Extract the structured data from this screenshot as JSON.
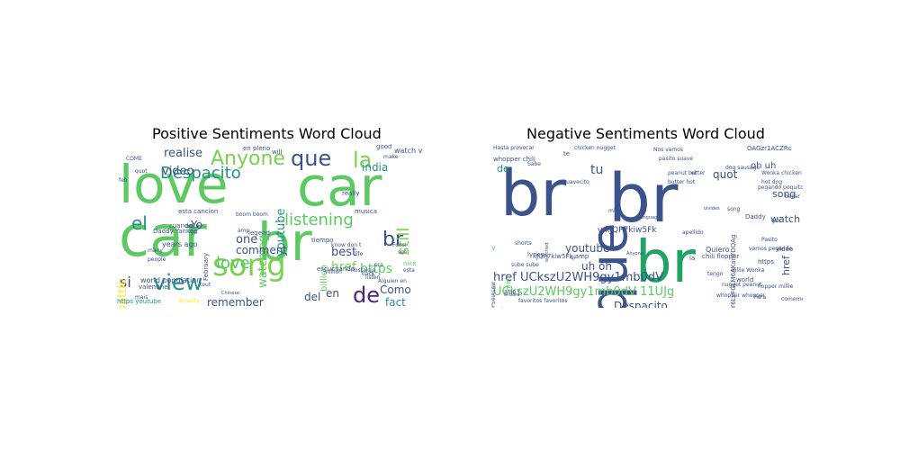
{
  "positive": {
    "title": "Positive Sentiments Word Cloud",
    "words": [
      {
        "t": "love",
        "s": 58,
        "c": "#5ec962",
        "x": 0,
        "y": 0
      },
      {
        "t": "car",
        "s": 62,
        "c": "#5ec962",
        "x": 0,
        "y": 0
      },
      {
        "t": "car",
        "s": 60,
        "c": "#5ec962",
        "x": 0,
        "y": 0
      },
      {
        "t": "br",
        "s": 58,
        "c": "#5ec962",
        "x": 0,
        "y": 0
      },
      {
        "t": "song",
        "s": 34,
        "c": "#7ad151",
        "x": 0,
        "y": 0
      },
      {
        "t": "Anyone",
        "s": 22,
        "c": "#7ad151",
        "x": 0,
        "y": 0
      },
      {
        "t": "que",
        "s": 24,
        "c": "#3b528b",
        "x": 0,
        "y": 0
      },
      {
        "t": "la",
        "s": 24,
        "c": "#7ad151",
        "x": 0,
        "y": 0
      },
      {
        "t": "listening",
        "s": 18,
        "c": "#5ec962",
        "x": 0,
        "y": 0
      },
      {
        "t": "Despacito",
        "s": 18,
        "c": "#21918c",
        "x": 0,
        "y": 0
      },
      {
        "t": "el",
        "s": 20,
        "c": "#21918c",
        "x": 0,
        "y": 0
      },
      {
        "t": "view",
        "s": 24,
        "c": "#21918c",
        "x": 0,
        "y": 0
      },
      {
        "t": "si",
        "s": 16,
        "c": "#3b528b",
        "x": 0,
        "y": 0
      },
      {
        "t": "love",
        "s": 18,
        "c": "#5ec962",
        "x": 0,
        "y": 0
      },
      {
        "t": "de",
        "s": 24,
        "c": "#482878",
        "x": 0,
        "y": 0
      },
      {
        "t": "br",
        "s": 22,
        "c": "#3b528b",
        "x": 0,
        "y": 0
      },
      {
        "t": "still",
        "s": 18,
        "c": "#7ad151",
        "x": 0,
        "y": 0
      },
      {
        "t": "href",
        "s": 14,
        "c": "#7ad151",
        "x": 0,
        "y": 0
      },
      {
        "t": "https",
        "s": 14,
        "c": "#5ec962",
        "x": 0,
        "y": 0
      },
      {
        "t": "realise",
        "s": 13,
        "c": "#3b528b",
        "x": 0,
        "y": 0
      },
      {
        "t": "video",
        "s": 13,
        "c": "#3b528b",
        "x": 0,
        "y": 0
      },
      {
        "t": "india",
        "s": 12,
        "c": "#21918c",
        "x": 0,
        "y": 0
      },
      {
        "t": "youtube",
        "s": 13,
        "c": "#21918c",
        "x": 0,
        "y": 0
      },
      {
        "t": "watching",
        "s": 13,
        "c": "#5ec962",
        "x": 0,
        "y": 0
      },
      {
        "t": "battle",
        "s": 13,
        "c": "#fde725",
        "x": 0,
        "y": 0
      },
      {
        "t": "comment",
        "s": 12,
        "c": "#3b528b",
        "x": 0,
        "y": 0
      },
      {
        "t": "one",
        "s": 13,
        "c": "#3b528b",
        "x": 0,
        "y": 0
      },
      {
        "t": "best",
        "s": 13,
        "c": "#3b528b",
        "x": 0,
        "y": 0
      },
      {
        "t": "Como",
        "s": 12,
        "c": "#3b528b",
        "x": 0,
        "y": 0
      },
      {
        "t": "fact",
        "s": 12,
        "c": "#21918c",
        "x": 0,
        "y": 0
      },
      {
        "t": "remember",
        "s": 12,
        "c": "#3b528b",
        "x": 0,
        "y": 0
      },
      {
        "t": "del",
        "s": 12,
        "c": "#3b528b",
        "x": 0,
        "y": 0
      },
      {
        "t": "en",
        "s": 12,
        "c": "#3b528b",
        "x": 0,
        "y": 0
      },
      {
        "t": "Yo",
        "s": 12,
        "c": "#3b528b",
        "x": 0,
        "y": 0
      },
      {
        "t": "billion",
        "s": 10,
        "c": "#5ec962",
        "x": 0,
        "y": 0
      },
      {
        "t": "years ago",
        "s": 8,
        "c": "#3b528b",
        "x": 0,
        "y": 0
      },
      {
        "t": "world population",
        "s": 8,
        "c": "#3b528b",
        "x": 0,
        "y": 0
      },
      {
        "t": "valentine",
        "s": 7,
        "c": "#3b528b",
        "x": 0,
        "y": 0
      },
      {
        "t": "https youtube",
        "s": 7,
        "c": "#21918c",
        "x": 0,
        "y": 0
      },
      {
        "t": "dynasty",
        "s": 6,
        "c": "#fde725",
        "x": 0,
        "y": 0
      },
      {
        "t": "watch v",
        "s": 8,
        "c": "#3b528b",
        "x": 0,
        "y": 0
      },
      {
        "t": "good",
        "s": 7,
        "c": "#3b528b",
        "x": 0,
        "y": 0
      },
      {
        "t": "en pleno",
        "s": 7,
        "c": "#3b528b",
        "x": 0,
        "y": 0
      },
      {
        "t": "will",
        "s": 7,
        "c": "#3b528b",
        "x": 0,
        "y": 0
      },
      {
        "t": "esta cancion",
        "s": 7,
        "c": "#3b528b",
        "x": 0,
        "y": 0
      },
      {
        "t": "cuando",
        "s": 7,
        "c": "#3b528b",
        "x": 0,
        "y": 0
      },
      {
        "t": "aqui",
        "s": 7,
        "c": "#3b528b",
        "x": 0,
        "y": 0
      },
      {
        "t": "Daddy Yankee",
        "s": 7,
        "c": "#3b528b",
        "x": 0,
        "y": 0
      },
      {
        "t": "legend",
        "s": 7,
        "c": "#3b528b",
        "x": 0,
        "y": 0
      },
      {
        "t": "February",
        "s": 7,
        "c": "#3b528b",
        "x": 0,
        "y": 0
      },
      {
        "t": "escuchando",
        "s": 7,
        "c": "#3b528b",
        "x": 0,
        "y": 0
      },
      {
        "t": "really",
        "s": 7,
        "c": "#3b528b",
        "x": 0,
        "y": 0
      },
      {
        "t": "musica",
        "s": 7,
        "c": "#3b528b",
        "x": 0,
        "y": 0
      },
      {
        "t": "tiempo",
        "s": 7,
        "c": "#3b528b",
        "x": 0,
        "y": 0
      },
      {
        "t": "life",
        "s": 6,
        "c": "#3b528b",
        "x": 0,
        "y": 0
      },
      {
        "t": "nice",
        "s": 7,
        "c": "#5ec962",
        "x": 0,
        "y": 0
      },
      {
        "t": "nostalgia",
        "s": 6,
        "c": "#3b528b",
        "x": 0,
        "y": 0
      },
      {
        "t": "listen",
        "s": 6,
        "c": "#3b528b",
        "x": 0,
        "y": 0
      },
      {
        "t": "Alguien en",
        "s": 6,
        "c": "#3b528b",
        "x": 0,
        "y": 0
      },
      {
        "t": "esta",
        "s": 6,
        "c": "#3b528b",
        "x": 0,
        "y": 0
      },
      {
        "t": "back",
        "s": 6,
        "c": "#3b528b",
        "x": 0,
        "y": 0
      },
      {
        "t": "people",
        "s": 6,
        "c": "#3b528b",
        "x": 0,
        "y": 0
      },
      {
        "t": "many",
        "s": 6,
        "c": "#3b528b",
        "x": 0,
        "y": 0
      },
      {
        "t": "quot",
        "s": 6,
        "c": "#3b528b",
        "x": 0,
        "y": 0
      },
      {
        "t": "COME",
        "s": 6,
        "c": "#3b528b",
        "x": 0,
        "y": 0
      },
      {
        "t": "feb",
        "s": 6,
        "c": "#3b528b",
        "x": 0,
        "y": 0
      },
      {
        "t": "mais",
        "s": 6,
        "c": "#3b528b",
        "x": 0,
        "y": 0
      },
      {
        "t": "boom boom",
        "s": 6,
        "c": "#3b528b",
        "x": 0,
        "y": 0
      },
      {
        "t": "Fonsi",
        "s": 6,
        "c": "#3b528b",
        "x": 0,
        "y": 0
      },
      {
        "t": "million",
        "s": 6,
        "c": "#3b528b",
        "x": 0,
        "y": 0
      },
      {
        "t": "see",
        "s": 6,
        "c": "#3b528b",
        "x": 0,
        "y": 0
      },
      {
        "t": "make",
        "s": 6,
        "c": "#3b528b",
        "x": 0,
        "y": 0
      },
      {
        "t": "tout",
        "s": 6,
        "c": "#3b528b",
        "x": 0,
        "y": 0
      },
      {
        "t": "amp",
        "s": 6,
        "c": "#3b528b",
        "x": 0,
        "y": 0
      },
      {
        "t": "know don t",
        "s": 6,
        "c": "#3b528b",
        "x": 0,
        "y": 0
      },
      {
        "t": "era",
        "s": 6,
        "c": "#3b528b",
        "x": 0,
        "y": 0
      },
      {
        "t": "Chinese",
        "s": 5,
        "c": "#3b528b",
        "x": 0,
        "y": 0
      },
      {
        "t": "yo",
        "s": 6,
        "c": "#3b528b",
        "x": 0,
        "y": 0
      }
    ]
  },
  "negative": {
    "title": "Negative Sentiments Word Cloud",
    "words": [
      {
        "t": "br",
        "s": 70,
        "c": "#3b528b",
        "x": 0,
        "y": 0
      },
      {
        "t": "br",
        "s": 74,
        "c": "#3b528b",
        "x": 0,
        "y": 0
      },
      {
        "t": "br",
        "s": 64,
        "c": "#21a366",
        "x": 0,
        "y": 0
      },
      {
        "t": "que",
        "s": 56,
        "c": "#3b528b",
        "x": 0,
        "y": 0
      },
      {
        "t": "href UCkszU2WH9gy1mb0dV",
        "s": 13,
        "c": "#3b528b",
        "x": 0,
        "y": 0
      },
      {
        "t": "UCkszU2WH9gy1mb0dV 11UJg",
        "s": 13,
        "c": "#5ec962",
        "x": 0,
        "y": 0
      },
      {
        "t": "Despacito",
        "s": 12,
        "c": "#3b528b",
        "x": 0,
        "y": 0
      },
      {
        "t": "youtube",
        "s": 12,
        "c": "#3b528b",
        "x": 0,
        "y": 0
      },
      {
        "t": "tu",
        "s": 14,
        "c": "#3b528b",
        "x": 0,
        "y": 0
      },
      {
        "t": "quot",
        "s": 12,
        "c": "#3b528b",
        "x": 0,
        "y": 0
      },
      {
        "t": "uh oh",
        "s": 12,
        "c": "#3b528b",
        "x": 0,
        "y": 0
      },
      {
        "t": "watch v",
        "s": 11,
        "c": "#3b528b",
        "x": 0,
        "y": 0
      },
      {
        "t": "song",
        "s": 11,
        "c": "#3b528b",
        "x": 0,
        "y": 0
      },
      {
        "t": "href",
        "s": 11,
        "c": "#3b528b",
        "x": 0,
        "y": 0
      },
      {
        "t": "de",
        "s": 11,
        "c": "#21918c",
        "x": 0,
        "y": 0
      },
      {
        "t": "oh uh",
        "s": 10,
        "c": "#3b528b",
        "x": 0,
        "y": 0
      },
      {
        "t": "v kJQP7kiw5Fk",
        "s": 9,
        "c": "#3b528b",
        "x": 0,
        "y": 0
      },
      {
        "t": "kJQP7kiw5Fk amp",
        "s": 7,
        "c": "#3b528b",
        "x": 0,
        "y": 0
      },
      {
        "t": "11UJg kslfY6LzFGLM6AKanYDQAg",
        "s": 7,
        "c": "#3b528b",
        "x": 0,
        "y": 0
      },
      {
        "t": "chili flopper",
        "s": 7,
        "c": "#3b528b",
        "x": 0,
        "y": 0
      },
      {
        "t": "whopper chili",
        "s": 7,
        "c": "#3b528b",
        "x": 0,
        "y": 0
      },
      {
        "t": "Hasta provocar",
        "s": 6,
        "c": "#3b528b",
        "x": 0,
        "y": 0
      },
      {
        "t": "chicken nugget",
        "s": 6,
        "c": "#3b528b",
        "x": 0,
        "y": 0
      },
      {
        "t": "Nos vamos",
        "s": 6,
        "c": "#3b528b",
        "x": 0,
        "y": 0
      },
      {
        "t": "pasito suave",
        "s": 6,
        "c": "#3b528b",
        "x": 0,
        "y": 0
      },
      {
        "t": "OAGzr1ACZRc",
        "s": 7,
        "c": "#3b528b",
        "x": 0,
        "y": 0
      },
      {
        "t": "hot dog",
        "s": 6,
        "c": "#3b528b",
        "x": 0,
        "y": 0
      },
      {
        "t": "butter hot",
        "s": 6,
        "c": "#3b528b",
        "x": 0,
        "y": 0
      },
      {
        "t": "peanut butter",
        "s": 6,
        "c": "#3b528b",
        "x": 0,
        "y": 0
      },
      {
        "t": "Wonka chicken",
        "s": 6,
        "c": "#3b528b",
        "x": 0,
        "y": 0
      },
      {
        "t": "dog sausage",
        "s": 6,
        "c": "#3b528b",
        "x": 0,
        "y": 0
      },
      {
        "t": "Daddy",
        "s": 7,
        "c": "#3b528b",
        "x": 0,
        "y": 0
      },
      {
        "t": "yo",
        "s": 7,
        "c": "#3b528b",
        "x": 0,
        "y": 0
      },
      {
        "t": "Pasito",
        "s": 6,
        "c": "#3b528b",
        "x": 0,
        "y": 0
      },
      {
        "t": "video",
        "s": 7,
        "c": "#3b528b",
        "x": 0,
        "y": 0
      },
      {
        "t": "vamos pegando",
        "s": 6,
        "c": "#3b528b",
        "x": 0,
        "y": 0
      },
      {
        "t": "https",
        "s": 7,
        "c": "#3b528b",
        "x": 0,
        "y": 0
      },
      {
        "t": "willie Wonka",
        "s": 6,
        "c": "#3b528b",
        "x": 0,
        "y": 0
      },
      {
        "t": "nugget peanut",
        "s": 6,
        "c": "#3b528b",
        "x": 0,
        "y": 0
      },
      {
        "t": "flopper millie",
        "s": 6,
        "c": "#3b528b",
        "x": 0,
        "y": 0
      },
      {
        "t": "whopper whopper",
        "s": 6,
        "c": "#3b528b",
        "x": 0,
        "y": 0
      },
      {
        "t": "world",
        "s": 7,
        "c": "#3b528b",
        "x": 0,
        "y": 0
      },
      {
        "t": "la",
        "s": 7,
        "c": "#3b528b",
        "x": 0,
        "y": 0
      },
      {
        "t": "Quiero",
        "s": 8,
        "c": "#3b528b",
        "x": 0,
        "y": 0
      },
      {
        "t": "lyrics",
        "s": 7,
        "c": "#3b528b",
        "x": 0,
        "y": 0
      },
      {
        "t": "sube sube",
        "s": 6,
        "c": "#3b528b",
        "x": 0,
        "y": 0
      },
      {
        "t": "favoritos favoritos",
        "s": 6,
        "c": "#3b528b",
        "x": 0,
        "y": 0
      },
      {
        "t": "amp t",
        "s": 6,
        "c": "#3b528b",
        "x": 0,
        "y": 0
      },
      {
        "t": "oh",
        "s": 7,
        "c": "#3b528b",
        "x": 0,
        "y": 0
      },
      {
        "t": "te",
        "s": 7,
        "c": "#3b528b",
        "x": 0,
        "y": 0
      },
      {
        "t": "Sabe",
        "s": 6,
        "c": "#3b528b",
        "x": 0,
        "y": 0
      },
      {
        "t": "suavecito",
        "s": 6,
        "c": "#3b528b",
        "x": 0,
        "y": 0
      },
      {
        "t": "11UJg kslfY6QgCd2TJ9sP54iAsAw",
        "s": 6,
        "c": "#3b528b",
        "x": 0,
        "y": 0
      },
      {
        "t": "href",
        "s": 7,
        "c": "#5ec962",
        "x": 0,
        "y": 0
      },
      {
        "t": "v",
        "s": 8,
        "c": "#5ec962",
        "x": 0,
        "y": 0
      },
      {
        "t": "shorts",
        "s": 6,
        "c": "#3b528b",
        "x": 0,
        "y": 0
      },
      {
        "t": "song",
        "s": 6,
        "c": "#3b528b",
        "x": 0,
        "y": 0
      },
      {
        "t": "apellido",
        "s": 6,
        "c": "#3b528b",
        "x": 0,
        "y": 0
      },
      {
        "t": "tengo",
        "s": 6,
        "c": "#3b528b",
        "x": 0,
        "y": 0
      },
      {
        "t": "Para",
        "s": 6,
        "c": "#3b528b",
        "x": 0,
        "y": 0
      },
      {
        "t": "comeme",
        "s": 6,
        "c": "#3b528b",
        "x": 0,
        "y": 0
      },
      {
        "t": "pegando poquito",
        "s": 6,
        "c": "#3b528b",
        "x": 0,
        "y": 0
      },
      {
        "t": "bailar",
        "s": 6,
        "c": "#3b528b",
        "x": 0,
        "y": 0
      },
      {
        "t": "el",
        "s": 6,
        "c": "#3b528b",
        "x": 0,
        "y": 0
      },
      {
        "t": "mi",
        "s": 6,
        "c": "#3b528b",
        "x": 0,
        "y": 0
      },
      {
        "t": "qi",
        "s": 6,
        "c": "#3b528b",
        "x": 0,
        "y": 0
      },
      {
        "t": "language",
        "s": 5,
        "c": "#3b528b",
        "x": 0,
        "y": 0
      },
      {
        "t": "watched",
        "s": 5,
        "c": "#3b528b",
        "x": 0,
        "y": 0
      },
      {
        "t": "el bora",
        "s": 5,
        "c": "#3b528b",
        "x": 0,
        "y": 0
      },
      {
        "t": "Anyone",
        "s": 5,
        "c": "#3b528b",
        "x": 0,
        "y": 0
      },
      {
        "t": "olvides",
        "s": 5,
        "c": "#3b528b",
        "x": 0,
        "y": 0
      }
    ]
  }
}
